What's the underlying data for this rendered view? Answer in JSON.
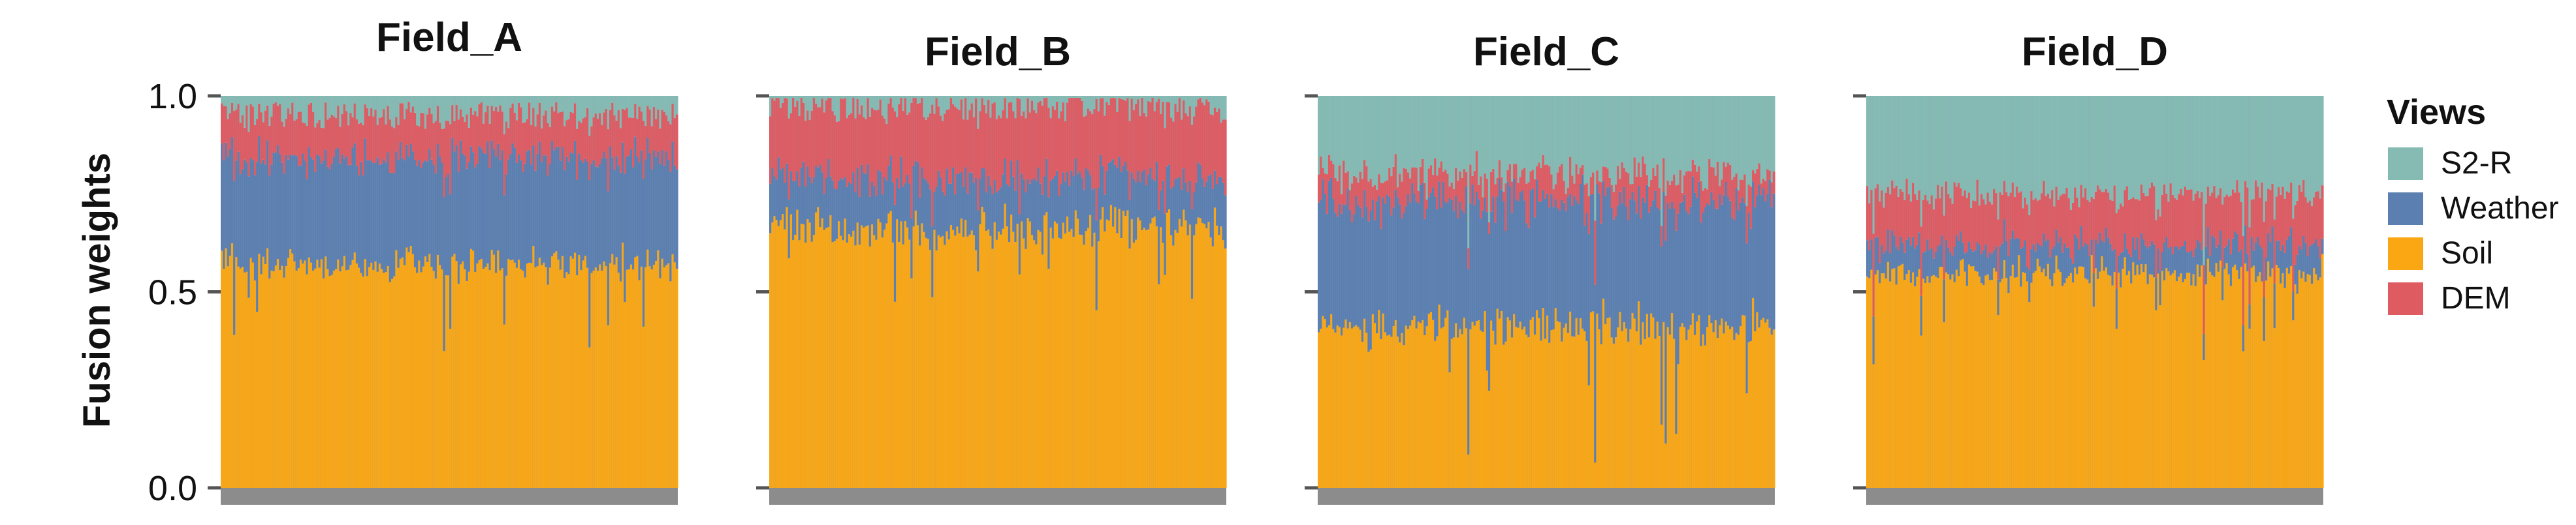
{
  "chart_data": {
    "type": "bar",
    "stacked": true,
    "ylabel": "Fusion weights",
    "ylim": [
      0,
      1
    ],
    "yticks": [
      {
        "value": 0,
        "label": "0.0"
      },
      {
        "value": 0.5,
        "label": "0.5"
      },
      {
        "value": 1,
        "label": "1.0"
      }
    ],
    "legend": {
      "title": "Views",
      "placement": "right",
      "entries": [
        {
          "name": "S2-R",
          "color": "#85BBB3"
        },
        {
          "name": "Weather",
          "color": "#5B7FB0"
        },
        {
          "name": "Soil",
          "color": "#FAA713"
        },
        {
          "name": "DEM",
          "color": "#DF5B62"
        }
      ]
    },
    "stack_order_bottom_to_top": [
      "Soil",
      "Weather",
      "DEM",
      "S2-R"
    ],
    "bar_edge_color": "#8FA0B8",
    "x_band_color": "#8C8C8C",
    "samples_per_field": 220,
    "panels": [
      {
        "title": "Field_A",
        "mean": {
          "Soil": 0.57,
          "Weather": 0.27,
          "DEM": 0.11,
          "S2-R": 0.05
        },
        "noise": 0.035
      },
      {
        "title": "Field_B",
        "mean": {
          "Soil": 0.66,
          "Weather": 0.13,
          "DEM": 0.18,
          "S2-R": 0.03
        },
        "noise": 0.04
      },
      {
        "title": "Field_C",
        "mean": {
          "Soil": 0.41,
          "Weather": 0.32,
          "DEM": 0.07,
          "S2-R": 0.2
        },
        "noise": 0.05
      },
      {
        "title": "Field_D",
        "mean": {
          "Soil": 0.55,
          "Weather": 0.07,
          "DEM": 0.13,
          "S2-R": 0.25
        },
        "noise": 0.035
      }
    ]
  }
}
